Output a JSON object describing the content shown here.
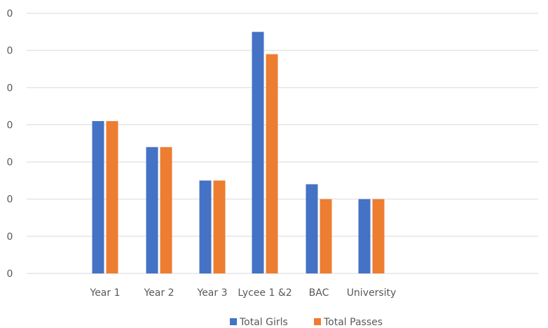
{
  "chart_data": {
    "type": "bar",
    "categories": [
      "Year 1",
      "Year 2",
      "Year 3",
      "Lycee 1 &2",
      "BAC",
      "University"
    ],
    "series": [
      {
        "name": "Total Girls",
        "values": [
          4.1,
          3.4,
          2.5,
          6.5,
          2.4,
          2.0
        ],
        "color": "#4472C4"
      },
      {
        "name": "Total Passes",
        "values": [
          4.1,
          3.4,
          2.5,
          5.9,
          2.0,
          2.0
        ],
        "color": "#ED7D31"
      }
    ],
    "y_tick_labels": [
      "0",
      "0",
      "0",
      "0",
      "0",
      "0",
      "0",
      "0"
    ],
    "ylim": [
      0,
      7
    ],
    "grid": true,
    "legend_position": "bottom-right",
    "title": "",
    "xlabel": "",
    "ylabel": ""
  }
}
